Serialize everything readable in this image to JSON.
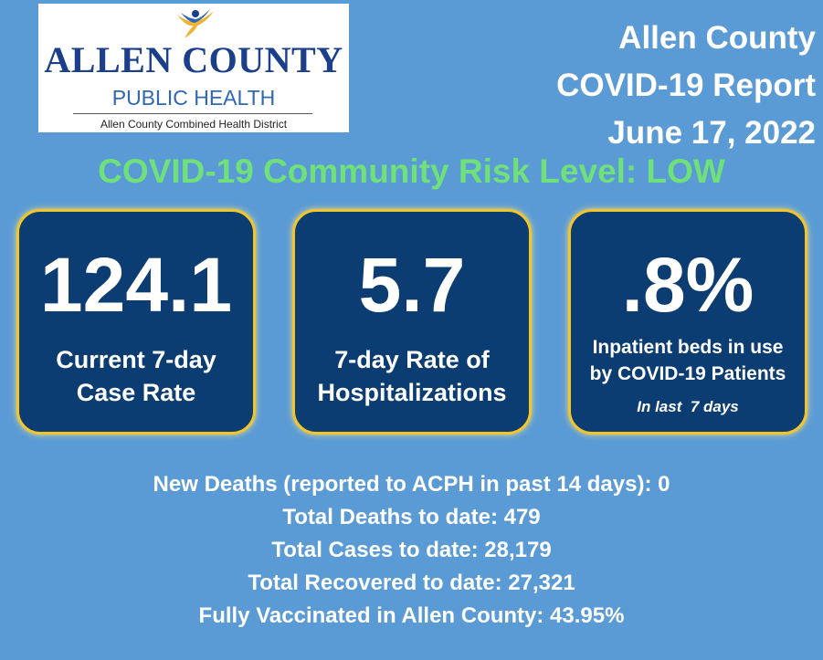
{
  "logo": {
    "name": "ALLEN COUNTY",
    "subtitle": "PUBLIC HEALTH",
    "district": "Allen County Combined Health District"
  },
  "report": {
    "line1": "Allen County",
    "line2": "COVID-19 Report",
    "date": "June 17, 2022"
  },
  "risk_level": "COVID-19 Community Risk Level: LOW",
  "cards": [
    {
      "value": "124.1",
      "label_line1": "Current 7-day",
      "label_line2": "Case Rate"
    },
    {
      "value": "5.7",
      "label_line1": "7-day Rate of",
      "label_line2": "Hospitalizations"
    },
    {
      "value": ".8%",
      "label_line1": "Inpatient beds in use",
      "label_line2": "by COVID-19 Patients",
      "note": "In last  7 days"
    }
  ],
  "stats": [
    "New Deaths (reported to ACPH in past 14 days): 0",
    "Total Deaths to date: 479",
    "Total Cases to date: 28,179",
    "Total Recovered to date: 27,321",
    "Fully Vaccinated in Allen County: 43.95%"
  ],
  "colors": {
    "background": "#5b9bd5",
    "card_fill": "#0b3d72",
    "card_border": "#f2c52a",
    "risk_text": "#6fe07a",
    "logo_navy": "#1b3f8a",
    "logo_blue": "#2f68b5"
  }
}
